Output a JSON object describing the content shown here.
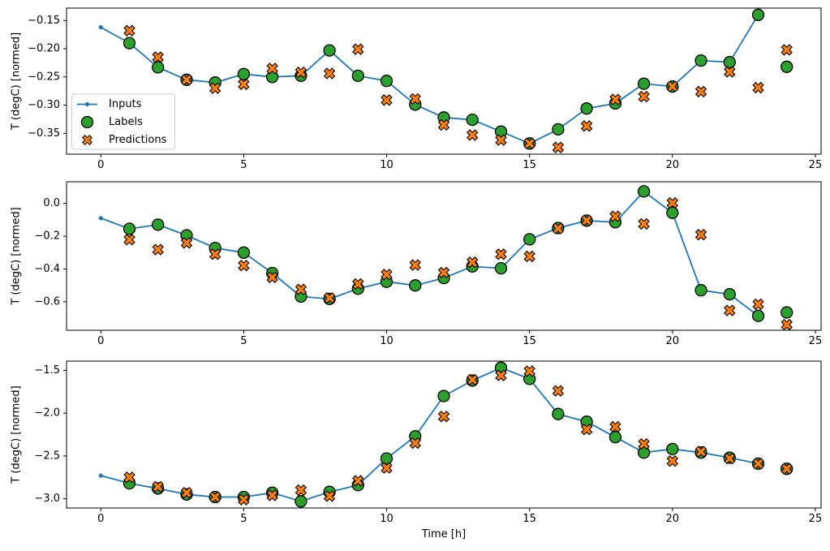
{
  "figure": {
    "background": "#ffffff",
    "text_color": "#000000",
    "spine_color": "#000000"
  },
  "legend": {
    "entries": [
      "Inputs",
      "Labels",
      "Predictions"
    ],
    "border_color": "#cccccc",
    "background": "rgba(255,255,255,0.85)"
  },
  "chart_data": [
    {
      "type": "line",
      "title": "",
      "ylabel": "T (degC) [normed]",
      "xlabel": "",
      "xlim": [
        -1.2,
        25.2
      ],
      "ylim": [
        -0.387,
        -0.128
      ],
      "grid": false,
      "xticks": {
        "values": [
          0,
          5,
          10,
          15,
          20,
          25
        ],
        "labels": [
          "0",
          "5",
          "10",
          "15",
          "20",
          "25"
        ]
      },
      "yticks": {
        "values": [
          -0.15,
          -0.2,
          -0.25,
          -0.3,
          -0.35
        ],
        "labels": [
          "−0.15",
          "−0.20",
          "−0.25",
          "−0.30",
          "−0.35"
        ]
      },
      "legend_visible": true,
      "series": [
        {
          "name": "Inputs",
          "style": "line-dot",
          "color": "#1f77b4",
          "x": [
            0,
            1,
            2,
            3,
            4,
            5,
            6,
            7,
            8,
            9,
            10,
            11,
            12,
            13,
            14,
            15,
            16,
            17,
            18,
            19,
            20,
            21,
            22,
            23
          ],
          "y": [
            -0.162,
            -0.19,
            -0.233,
            -0.255,
            -0.26,
            -0.245,
            -0.25,
            -0.248,
            -0.203,
            -0.248,
            -0.257,
            -0.299,
            -0.322,
            -0.326,
            -0.347,
            -0.368,
            -0.343,
            -0.306,
            -0.297,
            -0.262,
            -0.267,
            -0.221,
            -0.224,
            -0.14
          ]
        },
        {
          "name": "Labels",
          "style": "circle",
          "color": "#2ca02c",
          "x": [
            1,
            2,
            3,
            4,
            5,
            6,
            7,
            8,
            9,
            10,
            11,
            12,
            13,
            14,
            15,
            16,
            17,
            18,
            19,
            20,
            21,
            22,
            23,
            24
          ],
          "y": [
            -0.19,
            -0.233,
            -0.255,
            -0.26,
            -0.245,
            -0.25,
            -0.248,
            -0.203,
            -0.248,
            -0.257,
            -0.299,
            -0.322,
            -0.326,
            -0.347,
            -0.368,
            -0.343,
            -0.306,
            -0.297,
            -0.262,
            -0.267,
            -0.221,
            -0.224,
            -0.14,
            -0.232
          ]
        },
        {
          "name": "Predictions",
          "style": "x",
          "color": "#ff7f0e",
          "x": [
            1,
            2,
            3,
            4,
            5,
            6,
            7,
            8,
            9,
            10,
            11,
            12,
            13,
            14,
            15,
            16,
            17,
            18,
            19,
            20,
            21,
            22,
            23,
            24
          ],
          "y": [
            -0.168,
            -0.215,
            -0.255,
            -0.27,
            -0.263,
            -0.235,
            -0.242,
            -0.244,
            -0.201,
            -0.291,
            -0.289,
            -0.335,
            -0.353,
            -0.362,
            -0.368,
            -0.375,
            -0.337,
            -0.29,
            -0.285,
            -0.267,
            -0.276,
            -0.241,
            -0.269,
            -0.202
          ]
        }
      ]
    },
    {
      "type": "line",
      "title": "",
      "ylabel": "T (degC) [normed]",
      "xlabel": "",
      "xlim": [
        -1.2,
        25.2
      ],
      "ylim": [
        -0.774,
        0.132
      ],
      "grid": false,
      "xticks": {
        "values": [
          0,
          5,
          10,
          15,
          20,
          25
        ],
        "labels": [
          "0",
          "5",
          "10",
          "15",
          "20",
          "25"
        ]
      },
      "yticks": {
        "values": [
          0.0,
          -0.2,
          -0.4,
          -0.6
        ],
        "labels": [
          "0.0",
          "−0.2",
          "−0.4",
          "−0.6"
        ]
      },
      "legend_visible": false,
      "series": [
        {
          "name": "Inputs",
          "style": "line-dot",
          "color": "#1f77b4",
          "x": [
            0,
            1,
            2,
            3,
            4,
            5,
            6,
            7,
            8,
            9,
            10,
            11,
            12,
            13,
            14,
            15,
            16,
            17,
            18,
            19,
            20,
            21,
            22,
            23
          ],
          "y": [
            -0.09,
            -0.155,
            -0.13,
            -0.195,
            -0.272,
            -0.3,
            -0.425,
            -0.568,
            -0.583,
            -0.52,
            -0.478,
            -0.5,
            -0.455,
            -0.385,
            -0.396,
            -0.219,
            -0.15,
            -0.105,
            -0.115,
            0.073,
            -0.057,
            -0.53,
            -0.554,
            -0.686
          ]
        },
        {
          "name": "Labels",
          "style": "circle",
          "color": "#2ca02c",
          "x": [
            1,
            2,
            3,
            4,
            5,
            6,
            7,
            8,
            9,
            10,
            11,
            12,
            13,
            14,
            15,
            16,
            17,
            18,
            19,
            20,
            21,
            22,
            23,
            24
          ],
          "y": [
            -0.155,
            -0.13,
            -0.195,
            -0.272,
            -0.3,
            -0.425,
            -0.568,
            -0.583,
            -0.52,
            -0.478,
            -0.5,
            -0.455,
            -0.385,
            -0.396,
            -0.219,
            -0.15,
            -0.105,
            -0.115,
            0.073,
            -0.057,
            -0.53,
            -0.554,
            -0.686,
            -0.665
          ]
        },
        {
          "name": "Predictions",
          "style": "x",
          "color": "#ff7f0e",
          "x": [
            1,
            2,
            3,
            4,
            5,
            6,
            7,
            8,
            9,
            10,
            11,
            12,
            13,
            14,
            15,
            16,
            17,
            18,
            19,
            20,
            21,
            22,
            23,
            24
          ],
          "y": [
            -0.221,
            -0.282,
            -0.241,
            -0.31,
            -0.379,
            -0.451,
            -0.525,
            -0.577,
            -0.492,
            -0.434,
            -0.376,
            -0.422,
            -0.359,
            -0.31,
            -0.323,
            -0.153,
            -0.104,
            -0.079,
            -0.125,
            0.003,
            -0.191,
            -0.653,
            -0.615,
            -0.74
          ]
        }
      ]
    },
    {
      "type": "line",
      "title": "",
      "ylabel": "T (degC) [normed]",
      "xlabel": "Time [h]",
      "xlim": [
        -1.2,
        25.2
      ],
      "ylim": [
        -3.108,
        -1.392
      ],
      "grid": false,
      "xticks": {
        "values": [
          0,
          5,
          10,
          15,
          20,
          25
        ],
        "labels": [
          "0",
          "5",
          "10",
          "15",
          "20",
          "25"
        ]
      },
      "yticks": {
        "values": [
          -1.5,
          -2.0,
          -2.5,
          -3.0
        ],
        "labels": [
          "−1.5",
          "−2.0",
          "−2.5",
          "−3.0"
        ]
      },
      "legend_visible": false,
      "series": [
        {
          "name": "Inputs",
          "style": "line-dot",
          "color": "#1f77b4",
          "x": [
            0,
            1,
            2,
            3,
            4,
            5,
            6,
            7,
            8,
            9,
            10,
            11,
            12,
            13,
            14,
            15,
            16,
            17,
            18,
            19,
            20,
            21,
            22,
            23
          ],
          "y": [
            -2.73,
            -2.82,
            -2.88,
            -2.95,
            -2.98,
            -2.98,
            -2.93,
            -3.03,
            -2.92,
            -2.84,
            -2.53,
            -2.27,
            -1.8,
            -1.62,
            -1.47,
            -1.6,
            -2.01,
            -2.1,
            -2.28,
            -2.46,
            -2.42,
            -2.46,
            -2.52,
            -2.59
          ]
        },
        {
          "name": "Labels",
          "style": "circle",
          "color": "#2ca02c",
          "x": [
            1,
            2,
            3,
            4,
            5,
            6,
            7,
            8,
            9,
            10,
            11,
            12,
            13,
            14,
            15,
            16,
            17,
            18,
            19,
            20,
            21,
            22,
            23,
            24
          ],
          "y": [
            -2.82,
            -2.88,
            -2.95,
            -2.98,
            -2.98,
            -2.93,
            -3.03,
            -2.92,
            -2.84,
            -2.53,
            -2.27,
            -1.8,
            -1.62,
            -1.47,
            -1.6,
            -2.01,
            -2.1,
            -2.28,
            -2.46,
            -2.42,
            -2.46,
            -2.52,
            -2.59,
            -2.65
          ]
        },
        {
          "name": "Predictions",
          "style": "x",
          "color": "#ff7f0e",
          "x": [
            1,
            2,
            3,
            4,
            5,
            6,
            7,
            8,
            9,
            10,
            11,
            12,
            13,
            14,
            15,
            16,
            17,
            18,
            19,
            20,
            21,
            22,
            23,
            24
          ],
          "y": [
            -2.75,
            -2.86,
            -2.93,
            -2.98,
            -3.01,
            -2.96,
            -2.9,
            -2.97,
            -2.79,
            -2.64,
            -2.35,
            -2.04,
            -1.61,
            -1.56,
            -1.51,
            -1.74,
            -2.19,
            -2.16,
            -2.36,
            -2.56,
            -2.45,
            -2.53,
            -2.59,
            -2.65
          ]
        }
      ]
    }
  ]
}
